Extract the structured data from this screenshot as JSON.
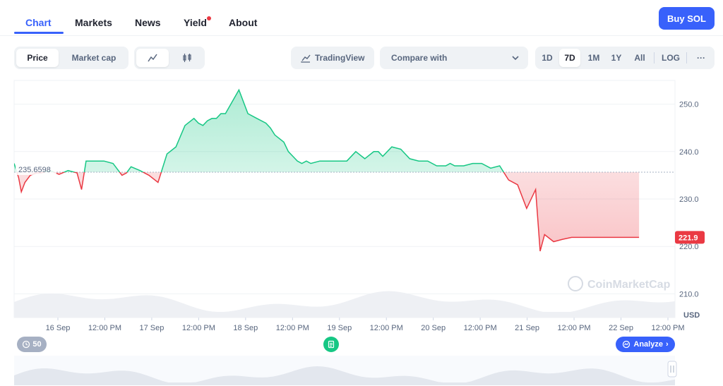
{
  "nav": {
    "tabs": [
      {
        "label": "Chart"
      },
      {
        "label": "Markets"
      },
      {
        "label": "News"
      },
      {
        "label": "Yield"
      },
      {
        "label": "About"
      }
    ],
    "buy_label": "Buy SOL"
  },
  "toolbar": {
    "price_label": "Price",
    "marketcap_label": "Market cap",
    "tradingview_label": "TradingView",
    "compare_label": "Compare with",
    "ranges": [
      "1D",
      "7D",
      "1M",
      "1Y",
      "All"
    ],
    "log_label": "LOG",
    "more_label": "···"
  },
  "watermark": "CoinMarketCap",
  "chart_data": {
    "type": "line",
    "y_unit": "USD",
    "ylim": [
      205,
      255
    ],
    "y_ticks": [
      250.0,
      240.0,
      230.0,
      220.0,
      210.0
    ],
    "y_tick_labels": [
      "250.0",
      "240.0",
      "230.0",
      "220.0",
      "210.0"
    ],
    "x_tick_labels": [
      "16 Sep",
      "12:00 PM",
      "17 Sep",
      "12:00 PM",
      "18 Sep",
      "12:00 PM",
      "19 Sep",
      "12:00 PM",
      "20 Sep",
      "12:00 PM",
      "21 Sep",
      "12:00 PM",
      "22 Sep",
      "12:00 PM"
    ],
    "baseline_value": 235.6598,
    "baseline_label": "235.6598",
    "current_value": 221.9,
    "current_label": "221.9",
    "colors": {
      "up": "#16c784",
      "down": "#ea3943"
    },
    "x": [
      0,
      0.05,
      0.08,
      0.12,
      0.18,
      0.25,
      0.3,
      0.4,
      0.5,
      0.6,
      0.7,
      0.75,
      0.8,
      0.9,
      1.0,
      1.1,
      1.2,
      1.25,
      1.3,
      1.4,
      1.5,
      1.6,
      1.7,
      1.8,
      1.9,
      2.0,
      2.05,
      2.1,
      2.15,
      2.2,
      2.25,
      2.3,
      2.35,
      2.5,
      2.6,
      2.7,
      2.8,
      2.85,
      2.9,
      3.0,
      3.05,
      3.1,
      3.15,
      3.2,
      3.25,
      3.3,
      3.4,
      3.5,
      3.6,
      3.7,
      3.8,
      3.9,
      4.0,
      4.05,
      4.1,
      4.2,
      4.3,
      4.4,
      4.5,
      4.6,
      4.7,
      4.75,
      4.8,
      4.85,
      4.9,
      4.95,
      5.0,
      5.1,
      5.2,
      5.3,
      5.4,
      5.5,
      5.6,
      5.7,
      5.8,
      5.85,
      5.9,
      6.0,
      6.1,
      6.2,
      6.3,
      6.4,
      6.5,
      6.6,
      6.7,
      6.8,
      6.9,
      6.95,
      7.0,
      7.02,
      7.05,
      7.1,
      7.2,
      7.3,
      7.35
    ],
    "y": [
      237.5,
      234.5,
      231.5,
      233.5,
      235.0,
      235.5,
      235.5,
      236.0,
      235.2,
      236.0,
      235.5,
      232.0,
      238.0,
      238.0,
      238.0,
      237.5,
      235.0,
      235.5,
      236.8,
      236.0,
      235.0,
      233.5,
      239.5,
      241.0,
      245.5,
      247.0,
      246.0,
      245.5,
      246.5,
      247.0,
      247.0,
      248.0,
      248.0,
      253.0,
      248.0,
      247.0,
      246.0,
      245.0,
      243.5,
      242.0,
      240.0,
      239.0,
      238.0,
      237.5,
      238.0,
      237.5,
      238.0,
      238.0,
      238.0,
      238.0,
      240.0,
      238.5,
      240.0,
      240.0,
      239.0,
      241.0,
      240.5,
      238.5,
      238.0,
      238.0,
      237.0,
      237.0,
      237.0,
      237.5,
      237.0,
      237.0,
      237.0,
      237.5,
      237.5,
      236.5,
      237.0,
      234.0,
      233.0,
      228.0,
      232.0,
      219.0,
      222.5,
      221.0,
      221.5,
      221.9,
      221.9,
      221.9,
      221.9,
      221.9,
      221.9,
      221.9,
      221.9,
      221.9,
      221.9,
      221.9,
      221.9,
      221.9,
      221.9,
      221.9,
      221.9
    ]
  },
  "controls": {
    "history_label": "50",
    "analyze_label": "Analyze"
  }
}
